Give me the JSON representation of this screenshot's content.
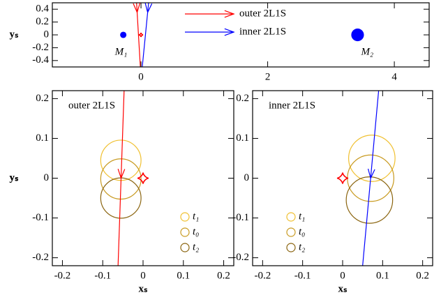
{
  "chart_data": [
    {
      "type": "lens-plane",
      "xlim": [
        -1.4,
        4.55
      ],
      "ylim": [
        -0.5,
        0.5
      ],
      "xticks": [
        0,
        2,
        4
      ],
      "yticks": [
        -0.4,
        -0.2,
        0,
        0.2,
        0.4
      ],
      "ylabel": "yₛ",
      "lenses": [
        {
          "name": "M₁",
          "x": -0.28,
          "y": 0,
          "r": 0.05,
          "color": "#0000ff"
        },
        {
          "name": "M₂",
          "x": 3.42,
          "y": 0,
          "r": 0.1,
          "color": "#0000ff"
        }
      ],
      "caustic": {
        "x": 0,
        "y": 0,
        "color": "#ff0000"
      },
      "series": [
        {
          "name": "outer 2L1S",
          "color": "#ff0000",
          "x": [
            -0.07,
            -0.01
          ],
          "y": [
            0.5,
            -0.5
          ]
        },
        {
          "name": "inner 2L1S",
          "color": "#0000ff",
          "x": [
            0.12,
            0.02
          ],
          "y": [
            0.5,
            -0.5
          ]
        }
      ]
    },
    {
      "type": "source-plane",
      "label": "outer 2L1S",
      "xlim": [
        -0.225,
        0.225
      ],
      "ylim": [
        -0.22,
        0.22
      ],
      "xticks": [
        -0.2,
        -0.1,
        0,
        0.1,
        0.2
      ],
      "yticks": [
        -0.2,
        -0.1,
        0,
        0.1,
        0.2
      ],
      "xlabel": "xₛ",
      "ylabel": "yₛ",
      "circles": [
        {
          "name": "t₁",
          "color": "#f0c030",
          "x": -0.055,
          "y": 0.045,
          "r": 0.05
        },
        {
          "name": "t₀",
          "color": "#c89a20",
          "x": -0.055,
          "y": -0.002,
          "r": 0.05
        },
        {
          "name": "t₂",
          "color": "#8b6510",
          "x": -0.055,
          "y": -0.05,
          "r": 0.05
        }
      ],
      "caustic": {
        "x": 0,
        "y": 0,
        "color": "#ff0000"
      },
      "trajectory": {
        "color": "#ff0000",
        "x": [
          -0.047,
          -0.062
        ],
        "y": [
          0.22,
          -0.22
        ]
      }
    },
    {
      "type": "source-plane",
      "label": "inner 2L1S",
      "xlim": [
        -0.225,
        0.225
      ],
      "ylim": [
        -0.22,
        0.22
      ],
      "xticks": [
        -0.2,
        -0.1,
        0,
        0.1,
        0.2
      ],
      "yticks": [
        -0.2,
        -0.1,
        0,
        0.1,
        0.2
      ],
      "xlabel": "xₛ",
      "ylabel": "yₛ",
      "circles": [
        {
          "name": "t₁",
          "color": "#f0c030",
          "x": 0.073,
          "y": 0.05,
          "r": 0.058
        },
        {
          "name": "t₀",
          "color": "#c89a20",
          "x": 0.07,
          "y": 0.0,
          "r": 0.058
        },
        {
          "name": "t₂",
          "color": "#8b6510",
          "x": 0.067,
          "y": -0.055,
          "r": 0.058
        }
      ],
      "caustic": {
        "x": 0,
        "y": 0,
        "color": "#ff0000"
      },
      "trajectory": {
        "color": "#0000ff",
        "x": [
          0.09,
          0.05
        ],
        "y": [
          0.22,
          -0.22
        ]
      }
    }
  ]
}
